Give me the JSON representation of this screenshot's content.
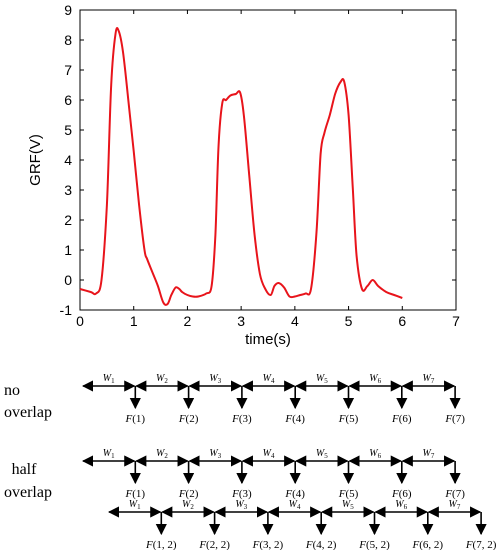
{
  "chart_data": {
    "type": "line",
    "xlabel": "time(s)",
    "ylabel": "GRF(V)",
    "xlim": [
      0,
      7
    ],
    "ylim": [
      -1,
      9
    ],
    "xticks": [
      "0",
      "1",
      "2",
      "3",
      "4",
      "5",
      "6",
      "7"
    ],
    "yticks": [
      "-1",
      "0",
      "1",
      "2",
      "3",
      "4",
      "5",
      "6",
      "7",
      "8",
      "9"
    ],
    "grid": false,
    "series": [
      {
        "color": "#e8141b",
        "x": [
          0,
          0.2,
          0.3,
          0.4,
          0.5,
          0.58,
          0.66,
          0.72,
          0.8,
          0.9,
          1.0,
          1.1,
          1.2,
          1.25,
          1.35,
          1.45,
          1.55,
          1.63,
          1.7,
          1.78,
          1.85,
          1.9,
          2.0,
          2.1,
          2.2,
          2.35,
          2.45,
          2.52,
          2.58,
          2.65,
          2.72,
          2.8,
          2.9,
          2.98,
          3.05,
          3.15,
          3.25,
          3.35,
          3.45,
          3.55,
          3.62,
          3.7,
          3.8,
          3.9,
          4.0,
          4.1,
          4.2,
          4.3,
          4.4,
          4.48,
          4.55,
          4.65,
          4.75,
          4.85,
          4.92,
          5.0,
          5.08,
          5.15,
          5.25,
          5.35,
          5.45,
          5.55,
          5.7,
          5.85,
          6.0
        ],
        "y": [
          -0.3,
          -0.4,
          -0.45,
          0.0,
          2.5,
          6.5,
          8.2,
          8.3,
          7.6,
          6.0,
          4.3,
          2.5,
          1.0,
          0.7,
          0.25,
          -0.2,
          -0.75,
          -0.8,
          -0.5,
          -0.25,
          -0.3,
          -0.4,
          -0.5,
          -0.55,
          -0.55,
          -0.45,
          -0.2,
          1.5,
          4.5,
          5.9,
          6.0,
          6.15,
          6.2,
          6.25,
          5.5,
          3.5,
          1.5,
          0.2,
          -0.3,
          -0.5,
          -0.2,
          -0.1,
          -0.25,
          -0.55,
          -0.55,
          -0.5,
          -0.45,
          -0.3,
          1.5,
          4.2,
          4.9,
          5.5,
          6.2,
          6.6,
          6.6,
          5.5,
          3.0,
          0.8,
          -0.3,
          -0.2,
          0.0,
          -0.2,
          -0.4,
          -0.5,
          -0.6
        ]
      }
    ]
  },
  "diagram": {
    "row_no_overlap": [
      "no",
      "overlap"
    ],
    "row_half_overlap": [
      "half",
      "overlap"
    ],
    "w_letter": "W",
    "w_subs": [
      "1",
      "2",
      "3",
      "4",
      "5",
      "6",
      "7"
    ],
    "f_letter": "F",
    "f_labels_row1": [
      "(1)",
      "(2)",
      "(3)",
      "(4)",
      "(5)",
      "(6)",
      "(7)"
    ],
    "f_labels_row2": [
      "(1)",
      "(2)",
      "(3)",
      "(4)",
      "(5)",
      "(6)",
      "(7)"
    ],
    "f_labels_row3": [
      "(1, 2)",
      "(2, 2)",
      "(3, 2)",
      "(4, 2)",
      "(5, 2)",
      "(6, 2)",
      "(7, 2)"
    ]
  }
}
